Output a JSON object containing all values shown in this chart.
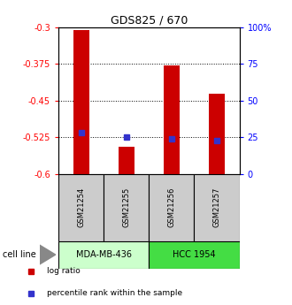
{
  "title": "GDS825 / 670",
  "samples": [
    "GSM21254",
    "GSM21255",
    "GSM21256",
    "GSM21257"
  ],
  "log_ratios": [
    -0.305,
    -0.545,
    -0.378,
    -0.435
  ],
  "percentile_ranks": [
    28,
    25,
    24,
    23
  ],
  "ylim_left": [
    -0.6,
    -0.3
  ],
  "ylim_right": [
    0,
    100
  ],
  "yticks_left": [
    -0.6,
    -0.525,
    -0.45,
    -0.375,
    -0.3
  ],
  "yticks_right": [
    0,
    25,
    50,
    75,
    100
  ],
  "ytick_labels_left": [
    "-0.6",
    "-0.525",
    "-0.45",
    "-0.375",
    "-0.3"
  ],
  "ytick_labels_right": [
    "0",
    "25",
    "50",
    "75",
    "100%"
  ],
  "bar_color": "#cc0000",
  "dot_color": "#3333cc",
  "bar_width": 0.35,
  "cell_lines": [
    "MDA-MB-436",
    "HCC 1954"
  ],
  "cell_line_spans": [
    [
      0,
      2
    ],
    [
      2,
      4
    ]
  ],
  "cell_line_colors": [
    "#ccffcc",
    "#44dd44"
  ],
  "sample_bg_color": "#cccccc",
  "legend_items": [
    "log ratio",
    "percentile rank within the sample"
  ],
  "legend_colors": [
    "#cc0000",
    "#3333cc"
  ]
}
